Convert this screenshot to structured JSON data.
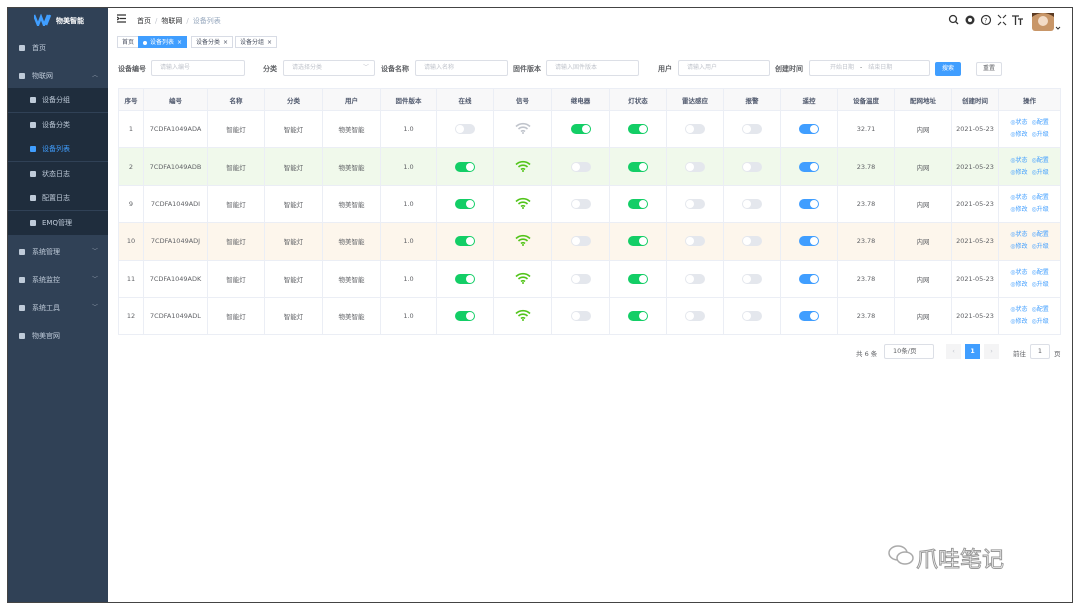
{
  "sidebar": {
    "logo": "物美智能",
    "menu": [
      {
        "label": "首页"
      },
      {
        "label": "物联网",
        "children": [
          "设备分组",
          "设备分类",
          "设备列表",
          "状态日志",
          "配置日志",
          "EMQ管理"
        ]
      },
      {
        "label": "系统管理"
      },
      {
        "label": "系统监控"
      },
      {
        "label": "系统工具"
      },
      {
        "label": "物美官网"
      }
    ]
  },
  "header": {
    "breadcrumb": [
      "首页",
      "物联网",
      "设备列表"
    ],
    "separator": "/"
  },
  "tags": [
    "首页",
    "设备列表",
    "设备分类",
    "设备分组"
  ],
  "search": {
    "fields": [
      {
        "label": "设备编号",
        "placeholder": "请输入编号"
      },
      {
        "label": "分类",
        "placeholder": "请选择分类"
      },
      {
        "label": "设备名称",
        "placeholder": "请输入名称"
      },
      {
        "label": "固件版本",
        "placeholder": "请输入固件版本"
      },
      {
        "label": "用户",
        "placeholder": "请输入用户"
      }
    ],
    "date": {
      "label": "创建时间",
      "start": "开始日期",
      "separator": "-",
      "end": "结束日期"
    },
    "buttons": [
      "搜索",
      "重置"
    ]
  },
  "table": {
    "columns": [
      "序号",
      "编号",
      "名称",
      "分类",
      "用户",
      "固件版本",
      "在线",
      "信号",
      "继电器",
      "灯状态",
      "雷达感应",
      "报警",
      "遥控",
      "设备温度",
      "配网地址",
      "创建时间",
      "操作"
    ],
    "actions": [
      "状态",
      "配置",
      "修改",
      "升级"
    ],
    "rows": [
      {
        "no": "1",
        "code": "7CDFA1049ADA",
        "name": "智能灯",
        "category": "智能灯",
        "user": "物美智能",
        "firmware": "1.0",
        "online": false,
        "signal": false,
        "relay": true,
        "light": true,
        "radar": false,
        "alarm": false,
        "remote": true,
        "temperature": "32.71",
        "network": "内网",
        "created": "2021-05-23"
      },
      {
        "no": "2",
        "code": "7CDFA1049ADB",
        "name": "智能灯",
        "category": "智能灯",
        "user": "物美智能",
        "firmware": "1.0",
        "online": true,
        "signal": true,
        "relay": false,
        "light": true,
        "radar": false,
        "alarm": false,
        "remote": true,
        "temperature": "23.78",
        "network": "内网",
        "created": "2021-05-23"
      },
      {
        "no": "9",
        "code": "7CDFA1049ADI",
        "name": "智能灯",
        "category": "智能灯",
        "user": "物美智能",
        "firmware": "1.0",
        "online": true,
        "signal": true,
        "relay": false,
        "light": true,
        "radar": false,
        "alarm": false,
        "remote": true,
        "temperature": "23.78",
        "network": "内网",
        "created": "2021-05-23"
      },
      {
        "no": "10",
        "code": "7CDFA1049ADJ",
        "name": "智能灯",
        "category": "智能灯",
        "user": "物美智能",
        "firmware": "1.0",
        "online": true,
        "signal": true,
        "relay": false,
        "light": true,
        "radar": false,
        "alarm": false,
        "remote": true,
        "temperature": "23.78",
        "network": "内网",
        "created": "2021-05-23"
      },
      {
        "no": "11",
        "code": "7CDFA1049ADK",
        "name": "智能灯",
        "category": "智能灯",
        "user": "物美智能",
        "firmware": "1.0",
        "online": true,
        "signal": true,
        "relay": false,
        "light": true,
        "radar": false,
        "alarm": false,
        "remote": true,
        "temperature": "23.78",
        "network": "内网",
        "created": "2021-05-23"
      },
      {
        "no": "12",
        "code": "7CDFA1049ADL",
        "name": "智能灯",
        "category": "智能灯",
        "user": "物美智能",
        "firmware": "1.0",
        "online": true,
        "signal": true,
        "relay": false,
        "light": true,
        "radar": false,
        "alarm": false,
        "remote": true,
        "temperature": "23.78",
        "network": "内网",
        "created": "2021-05-23"
      }
    ]
  },
  "pagination": {
    "total": "共 6 条",
    "page_size": "10条/页",
    "page": "1",
    "goto": "前往",
    "goto_value": "1",
    "page_unit": "页"
  },
  "watermark": "爪哇笔记"
}
